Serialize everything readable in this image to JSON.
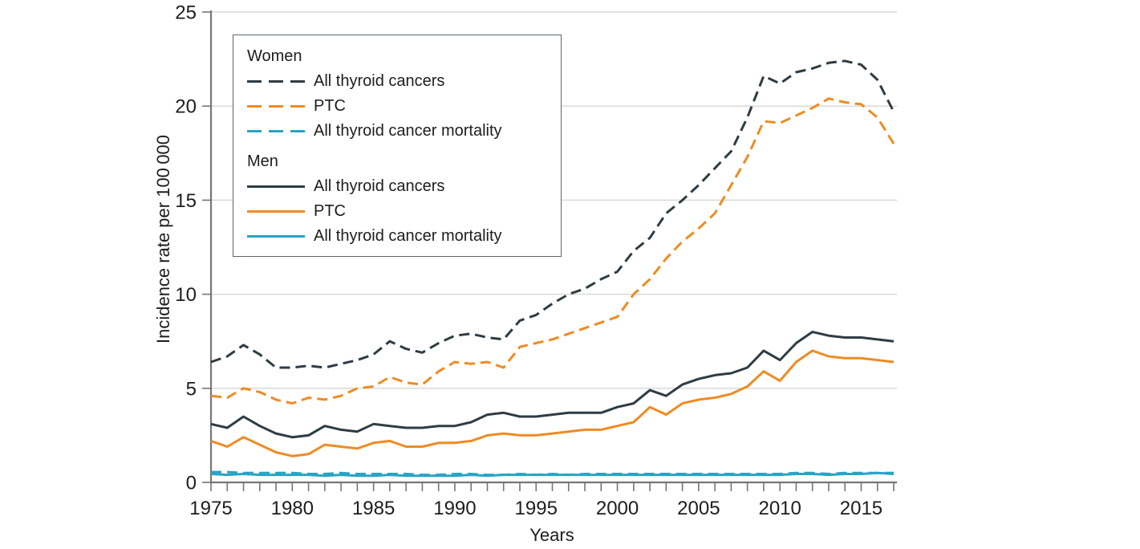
{
  "colors": {
    "dark": "#2e3c44",
    "orange": "#ef8b22",
    "teal": "#28a4c4",
    "grid": "#d9d9d9",
    "axis": "#757575",
    "text": "#1d1d1d",
    "legend_border": "#5a646b"
  },
  "legend": {
    "groups": [
      {
        "title": "Women",
        "items": [
          {
            "label": "All thyroid cancers",
            "color": "dark",
            "dashed": true
          },
          {
            "label": "PTC",
            "color": "orange",
            "dashed": true
          },
          {
            "label": "All thyroid cancer mortality",
            "color": "teal",
            "dashed": true
          }
        ]
      },
      {
        "title": "Men",
        "items": [
          {
            "label": "All thyroid cancers",
            "color": "dark",
            "dashed": false
          },
          {
            "label": "PTC",
            "color": "orange",
            "dashed": false
          },
          {
            "label": "All thyroid cancer mortality",
            "color": "teal",
            "dashed": false
          }
        ]
      }
    ]
  },
  "chart_data": {
    "type": "line",
    "title": "",
    "xlabel": "Years",
    "ylabel": "Incidence rate per 100 000",
    "xlim": [
      1975,
      2017
    ],
    "ylim": [
      0,
      25
    ],
    "x_major_ticks": [
      1975,
      1980,
      1985,
      1990,
      1995,
      2000,
      2005,
      2010,
      2015
    ],
    "x_minor_tick_step": 1,
    "y_ticks": [
      0,
      5,
      10,
      15,
      20,
      25
    ],
    "grid": "horizontal-only",
    "legend_position": "upper-left-inside",
    "x": [
      1975,
      1976,
      1977,
      1978,
      1979,
      1980,
      1981,
      1982,
      1983,
      1984,
      1985,
      1986,
      1987,
      1988,
      1989,
      1990,
      1991,
      1992,
      1993,
      1994,
      1995,
      1996,
      1997,
      1998,
      1999,
      2000,
      2001,
      2002,
      2003,
      2004,
      2005,
      2006,
      2007,
      2008,
      2009,
      2010,
      2011,
      2012,
      2013,
      2014,
      2015,
      2016,
      2017
    ],
    "series": [
      {
        "group": "Men",
        "name": "All thyroid cancer mortality",
        "color": "teal",
        "dashed": false,
        "values": [
          0.45,
          0.4,
          0.45,
          0.4,
          0.4,
          0.4,
          0.4,
          0.35,
          0.4,
          0.35,
          0.35,
          0.4,
          0.35,
          0.35,
          0.35,
          0.35,
          0.4,
          0.35,
          0.4,
          0.4,
          0.4,
          0.4,
          0.4,
          0.4,
          0.4,
          0.4,
          0.4,
          0.4,
          0.4,
          0.4,
          0.4,
          0.4,
          0.4,
          0.4,
          0.4,
          0.4,
          0.45,
          0.45,
          0.4,
          0.45,
          0.45,
          0.5,
          0.45
        ]
      },
      {
        "group": "Women",
        "name": "All thyroid cancer mortality",
        "color": "teal",
        "dashed": true,
        "values": [
          0.55,
          0.55,
          0.5,
          0.5,
          0.5,
          0.5,
          0.45,
          0.45,
          0.5,
          0.45,
          0.45,
          0.45,
          0.45,
          0.4,
          0.4,
          0.45,
          0.45,
          0.4,
          0.4,
          0.45,
          0.4,
          0.45,
          0.4,
          0.45,
          0.45,
          0.45,
          0.45,
          0.45,
          0.45,
          0.45,
          0.45,
          0.45,
          0.45,
          0.45,
          0.45,
          0.45,
          0.5,
          0.5,
          0.45,
          0.5,
          0.5,
          0.5,
          0.5
        ]
      },
      {
        "group": "Men",
        "name": "PTC",
        "color": "orange",
        "dashed": false,
        "values": [
          2.2,
          1.9,
          2.4,
          2.0,
          1.6,
          1.4,
          1.5,
          2.0,
          1.9,
          1.8,
          2.1,
          2.2,
          1.9,
          1.9,
          2.1,
          2.1,
          2.2,
          2.5,
          2.6,
          2.5,
          2.5,
          2.6,
          2.7,
          2.8,
          2.8,
          3.0,
          3.2,
          4.0,
          3.6,
          4.2,
          4.4,
          4.5,
          4.7,
          5.1,
          5.9,
          5.4,
          6.4,
          7.0,
          6.7,
          6.6,
          6.6,
          6.5,
          6.4
        ]
      },
      {
        "group": "Men",
        "name": "All thyroid cancers",
        "color": "dark",
        "dashed": false,
        "values": [
          3.1,
          2.9,
          3.5,
          3.0,
          2.6,
          2.4,
          2.5,
          3.0,
          2.8,
          2.7,
          3.1,
          3.0,
          2.9,
          2.9,
          3.0,
          3.0,
          3.2,
          3.6,
          3.7,
          3.5,
          3.5,
          3.6,
          3.7,
          3.7,
          3.7,
          4.0,
          4.2,
          4.9,
          4.6,
          5.2,
          5.5,
          5.7,
          5.8,
          6.1,
          7.0,
          6.5,
          7.4,
          8.0,
          7.8,
          7.7,
          7.7,
          7.6,
          7.5
        ]
      },
      {
        "group": "Women",
        "name": "PTC",
        "color": "orange",
        "dashed": true,
        "values": [
          4.6,
          4.5,
          5.0,
          4.8,
          4.4,
          4.2,
          4.5,
          4.4,
          4.6,
          5.0,
          5.1,
          5.6,
          5.3,
          5.2,
          5.9,
          6.4,
          6.3,
          6.4,
          6.1,
          7.2,
          7.4,
          7.6,
          7.9,
          8.2,
          8.5,
          8.8,
          10.0,
          10.8,
          11.9,
          12.8,
          13.5,
          14.3,
          15.8,
          17.3,
          19.2,
          19.1,
          19.5,
          19.9,
          20.4,
          20.2,
          20.1,
          19.4,
          18.0
        ]
      },
      {
        "group": "Women",
        "name": "All thyroid cancers",
        "color": "dark",
        "dashed": true,
        "values": [
          6.4,
          6.7,
          7.3,
          6.8,
          6.1,
          6.1,
          6.2,
          6.1,
          6.3,
          6.5,
          6.8,
          7.5,
          7.1,
          6.9,
          7.4,
          7.8,
          7.9,
          7.7,
          7.6,
          8.6,
          8.9,
          9.5,
          10.0,
          10.3,
          10.8,
          11.2,
          12.3,
          13.0,
          14.3,
          15.0,
          15.8,
          16.7,
          17.6,
          19.4,
          21.6,
          21.2,
          21.8,
          22.0,
          22.3,
          22.4,
          22.2,
          21.4,
          19.7
        ]
      }
    ]
  }
}
